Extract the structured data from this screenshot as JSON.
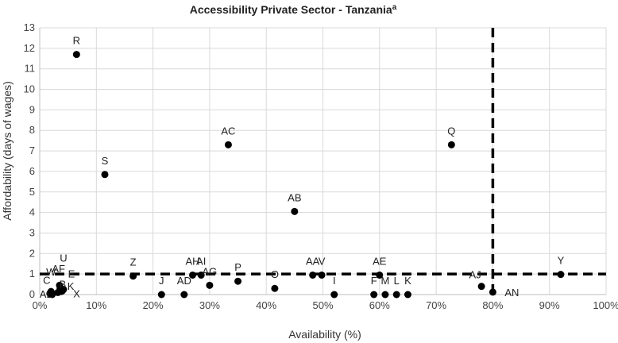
{
  "chart_data": {
    "type": "scatter",
    "title": "Accessibility Private Sector - Tanzania",
    "title_superscript": "a",
    "xlabel": "Availability (%)",
    "ylabel": "Affordability (days of wages)",
    "xlim": [
      0,
      100
    ],
    "ylim": [
      0,
      13
    ],
    "x_ticks": [
      "0%",
      "10%",
      "20%",
      "30%",
      "40%",
      "50%",
      "60%",
      "70%",
      "80%",
      "90%",
      "100%"
    ],
    "y_ticks": [
      "0",
      "1",
      "2",
      "3",
      "4",
      "5",
      "6",
      "7",
      "8",
      "9",
      "10",
      "11",
      "12",
      "13"
    ],
    "reference_lines": {
      "x": 80,
      "y": 1
    },
    "points": [
      {
        "label": "R",
        "x": 6.5,
        "y": 11.7
      },
      {
        "label": "S",
        "x": 11.5,
        "y": 5.85
      },
      {
        "label": "AC",
        "x": 33.3,
        "y": 7.3
      },
      {
        "label": "AB",
        "x": 45,
        "y": 4.05
      },
      {
        "label": "Q",
        "x": 72.7,
        "y": 7.3
      },
      {
        "label": "W",
        "x": 2,
        "y": 0.15
      },
      {
        "label": "U",
        "x": 3.5,
        "y": 0.45
      },
      {
        "label": "AF",
        "x": 3.6,
        "y": 0.3
      },
      {
        "label": "E",
        "x": 4.2,
        "y": 0.25
      },
      {
        "label": "C",
        "x": 1.8,
        "y": 0.05
      },
      {
        "label": "AL",
        "x": 2.2,
        "y": 0.0
      },
      {
        "label": "B",
        "x": 3.2,
        "y": 0.1
      },
      {
        "label": "K",
        "x": 3.8,
        "y": 0.15
      },
      {
        "label": "X",
        "x": 4.0,
        "y": 0.18
      },
      {
        "label": "Z",
        "x": 16.5,
        "y": 0.9
      },
      {
        "label": "J",
        "x": 21.5,
        "y": 0.0
      },
      {
        "label": "AD",
        "x": 25.5,
        "y": 0.0
      },
      {
        "label": "AH",
        "x": 27,
        "y": 0.95
      },
      {
        "label": "AI",
        "x": 28.5,
        "y": 0.95
      },
      {
        "label": "AG",
        "x": 30,
        "y": 0.45
      },
      {
        "label": "P",
        "x": 35,
        "y": 0.65
      },
      {
        "label": "O",
        "x": 41.5,
        "y": 0.3
      },
      {
        "label": "AA",
        "x": 48.2,
        "y": 0.95
      },
      {
        "label": "V",
        "x": 49.8,
        "y": 0.95
      },
      {
        "label": "I",
        "x": 52,
        "y": 0.0
      },
      {
        "label": "AE",
        "x": 60,
        "y": 0.95
      },
      {
        "label": "F",
        "x": 59,
        "y": 0.0
      },
      {
        "label": "M",
        "x": 61,
        "y": 0.0
      },
      {
        "label": "L",
        "x": 63,
        "y": 0.0
      },
      {
        "label": "K",
        "x": 65,
        "y": 0.0
      },
      {
        "label": "AJ",
        "x": 78,
        "y": 0.4
      },
      {
        "label": "AN",
        "x": 80,
        "y": 0.12
      },
      {
        "label": "Y",
        "x": 92,
        "y": 0.98
      }
    ]
  }
}
